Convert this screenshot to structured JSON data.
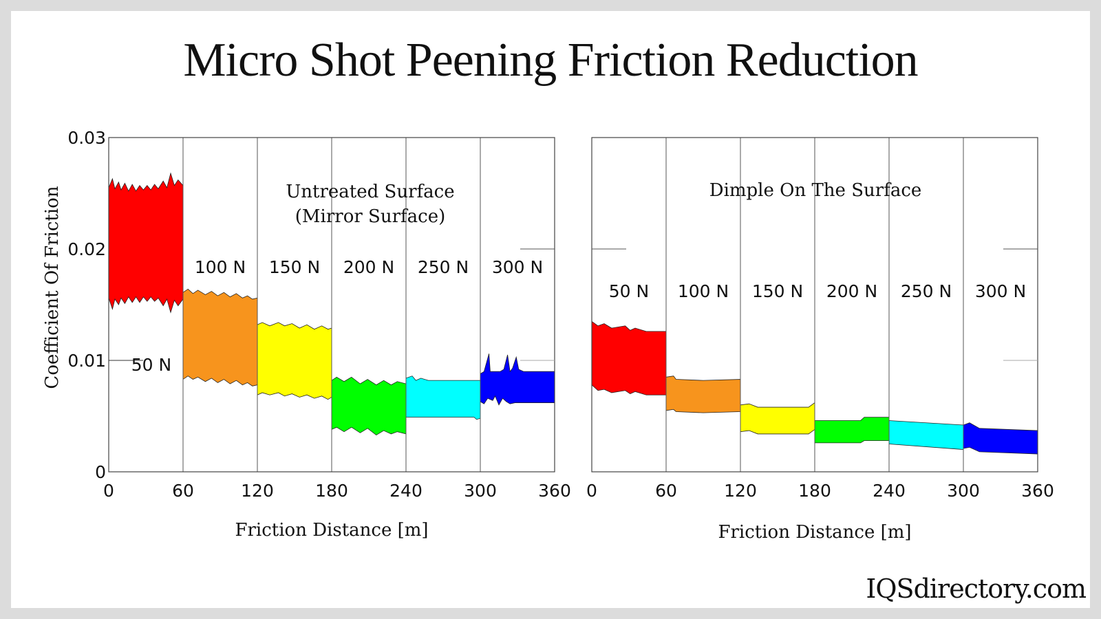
{
  "title": "Micro Shot Peening Friction Reduction",
  "watermark": "IQSdirectory.com",
  "chart_data": [
    {
      "type": "area",
      "title": "Untreated Surface (Mirror Surface)",
      "title_lines": [
        "Untreated Surface",
        "(Mirror Surface)"
      ],
      "xlabel": "Friction Distance [m]",
      "ylabel": "Coefficient Of Friction",
      "xlim": [
        0,
        360
      ],
      "ylim": [
        0,
        0.03
      ],
      "xticks": [
        "0",
        "60",
        "120",
        "180",
        "240",
        "300",
        "360"
      ],
      "yticks": [
        "0",
        "0.01",
        "0.02",
        "0.03"
      ],
      "grid": "vertical lines at 60 m intervals",
      "bands": [
        {
          "load": "50 N",
          "color": "#ff0000",
          "top": [
            [
              0,
              0.0255
            ],
            [
              3,
              0.0263
            ],
            [
              5,
              0.0254
            ],
            [
              8,
              0.026
            ],
            [
              10,
              0.0253
            ],
            [
              13,
              0.0259
            ],
            [
              16,
              0.0252
            ],
            [
              19,
              0.0258
            ],
            [
              22,
              0.0252
            ],
            [
              25,
              0.0257
            ],
            [
              28,
              0.0253
            ],
            [
              31,
              0.0257
            ],
            [
              34,
              0.0253
            ],
            [
              37,
              0.0258
            ],
            [
              40,
              0.0254
            ],
            [
              44,
              0.0261
            ],
            [
              47,
              0.0255
            ],
            [
              50,
              0.0268
            ],
            [
              53,
              0.0257
            ],
            [
              56,
              0.0262
            ],
            [
              60,
              0.0257
            ]
          ],
          "bottom": [
            [
              0,
              0.0156
            ],
            [
              3,
              0.0146
            ],
            [
              5,
              0.0155
            ],
            [
              8,
              0.015
            ],
            [
              10,
              0.0156
            ],
            [
              13,
              0.0151
            ],
            [
              16,
              0.0157
            ],
            [
              19,
              0.0152
            ],
            [
              22,
              0.0157
            ],
            [
              25,
              0.0152
            ],
            [
              28,
              0.0157
            ],
            [
              31,
              0.0153
            ],
            [
              34,
              0.0157
            ],
            [
              37,
              0.0153
            ],
            [
              40,
              0.0156
            ],
            [
              44,
              0.0149
            ],
            [
              47,
              0.0155
            ],
            [
              50,
              0.0143
            ],
            [
              53,
              0.0154
            ],
            [
              56,
              0.0149
            ],
            [
              60,
              0.0155
            ]
          ]
        },
        {
          "load": "100 N",
          "color": "#f7941d",
          "top": [
            [
              60,
              0.0161
            ],
            [
              64,
              0.0164
            ],
            [
              68,
              0.016
            ],
            [
              72,
              0.0163
            ],
            [
              78,
              0.0159
            ],
            [
              83,
              0.0162
            ],
            [
              88,
              0.0158
            ],
            [
              93,
              0.0161
            ],
            [
              98,
              0.0157
            ],
            [
              103,
              0.016
            ],
            [
              108,
              0.0156
            ],
            [
              112,
              0.0158
            ],
            [
              116,
              0.0155
            ],
            [
              120,
              0.0156
            ]
          ],
          "bottom": [
            [
              60,
              0.0083
            ],
            [
              64,
              0.0086
            ],
            [
              68,
              0.0083
            ],
            [
              72,
              0.0085
            ],
            [
              78,
              0.0081
            ],
            [
              83,
              0.0084
            ],
            [
              88,
              0.008
            ],
            [
              93,
              0.0083
            ],
            [
              98,
              0.0079
            ],
            [
              103,
              0.0082
            ],
            [
              108,
              0.0078
            ],
            [
              112,
              0.008
            ],
            [
              116,
              0.0077
            ],
            [
              120,
              0.0078
            ]
          ]
        },
        {
          "load": "150 N",
          "color": "#ffff00",
          "top": [
            [
              120,
              0.0132
            ],
            [
              124,
              0.0134
            ],
            [
              130,
              0.0131
            ],
            [
              137,
              0.0134
            ],
            [
              142,
              0.0131
            ],
            [
              148,
              0.0133
            ],
            [
              154,
              0.0129
            ],
            [
              160,
              0.0132
            ],
            [
              166,
              0.0128
            ],
            [
              172,
              0.0131
            ],
            [
              177,
              0.0128
            ],
            [
              180,
              0.0129
            ]
          ],
          "bottom": [
            [
              120,
              0.0069
            ],
            [
              124,
              0.0071
            ],
            [
              130,
              0.0069
            ],
            [
              137,
              0.0071
            ],
            [
              142,
              0.0068
            ],
            [
              148,
              0.007
            ],
            [
              154,
              0.0067
            ],
            [
              160,
              0.0069
            ],
            [
              166,
              0.0066
            ],
            [
              172,
              0.0068
            ],
            [
              177,
              0.0065
            ],
            [
              180,
              0.0067
            ]
          ],
          "extra": null
        },
        {
          "load": "200 N",
          "color": "#00ff00",
          "top": [
            [
              180,
              0.0082
            ],
            [
              184,
              0.0085
            ],
            [
              190,
              0.0081
            ],
            [
              196,
              0.0085
            ],
            [
              203,
              0.0079
            ],
            [
              209,
              0.0083
            ],
            [
              216,
              0.0078
            ],
            [
              222,
              0.0082
            ],
            [
              228,
              0.0078
            ],
            [
              233,
              0.0081
            ],
            [
              240,
              0.0079
            ]
          ],
          "bottom": [
            [
              180,
              0.0038
            ],
            [
              184,
              0.004
            ],
            [
              190,
              0.0036
            ],
            [
              196,
              0.004
            ],
            [
              203,
              0.0035
            ],
            [
              209,
              0.0039
            ],
            [
              216,
              0.0033
            ],
            [
              222,
              0.0037
            ],
            [
              228,
              0.0034
            ],
            [
              233,
              0.0036
            ],
            [
              240,
              0.0034
            ]
          ]
        },
        {
          "load": "250 N",
          "color": "#00ffff",
          "top": [
            [
              240,
              0.0084
            ],
            [
              245,
              0.0086
            ],
            [
              248,
              0.0082
            ],
            [
              252,
              0.0084
            ],
            [
              258,
              0.0082
            ],
            [
              300,
              0.0082
            ]
          ],
          "bottom": [
            [
              240,
              0.0049
            ],
            [
              295,
              0.0049
            ],
            [
              297,
              0.0047
            ],
            [
              300,
              0.0048
            ]
          ]
        },
        {
          "load": "300 N",
          "color": "#0000ff",
          "top": [
            [
              300,
              0.0088
            ],
            [
              303,
              0.009
            ],
            [
              307,
              0.0106
            ],
            [
              308,
              0.009
            ],
            [
              316,
              0.009
            ],
            [
              319,
              0.0092
            ],
            [
              322,
              0.0105
            ],
            [
              324,
              0.009
            ],
            [
              326,
              0.0093
            ],
            [
              329,
              0.0103
            ],
            [
              331,
              0.0092
            ],
            [
              335,
              0.009
            ],
            [
              360,
              0.009
            ]
          ],
          "bottom": [
            [
              300,
              0.0063
            ],
            [
              303,
              0.0061
            ],
            [
              306,
              0.0066
            ],
            [
              310,
              0.0064
            ],
            [
              312,
              0.0068
            ],
            [
              315,
              0.006
            ],
            [
              318,
              0.0066
            ],
            [
              321,
              0.0063
            ],
            [
              324,
              0.0061
            ],
            [
              328,
              0.0062
            ],
            [
              360,
              0.0062
            ]
          ]
        }
      ]
    },
    {
      "type": "area",
      "title": "Dimple On The Surface",
      "xlabel": "Friction Distance [m]",
      "xlim": [
        0,
        360
      ],
      "ylim": [
        0,
        0.03
      ],
      "xticks": [
        "0",
        "60",
        "120",
        "180",
        "240",
        "300",
        "360"
      ],
      "grid": "vertical lines at 60 m intervals",
      "bands": [
        {
          "load": "50 N",
          "color": "#ff0000",
          "top": [
            [
              0,
              0.0135
            ],
            [
              5,
              0.0131
            ],
            [
              10,
              0.0133
            ],
            [
              16,
              0.0129
            ],
            [
              27,
              0.0131
            ],
            [
              31,
              0.0127
            ],
            [
              35,
              0.0129
            ],
            [
              44,
              0.0126
            ],
            [
              60,
              0.0126
            ]
          ],
          "bottom": [
            [
              0,
              0.0078
            ],
            [
              5,
              0.0073
            ],
            [
              10,
              0.0074
            ],
            [
              16,
              0.0071
            ],
            [
              27,
              0.0073
            ],
            [
              31,
              0.007
            ],
            [
              35,
              0.0072
            ],
            [
              44,
              0.0069
            ],
            [
              60,
              0.0069
            ]
          ]
        },
        {
          "load": "100 N",
          "color": "#f7941d",
          "top": [
            [
              60,
              0.0085
            ],
            [
              66,
              0.0086
            ],
            [
              68,
              0.0083
            ],
            [
              90,
              0.0082
            ],
            [
              120,
              0.0083
            ]
          ],
          "bottom": [
            [
              60,
              0.0055
            ],
            [
              66,
              0.0056
            ],
            [
              68,
              0.0054
            ],
            [
              90,
              0.0053
            ],
            [
              120,
              0.0054
            ]
          ]
        },
        {
          "load": "150 N",
          "color": "#ffff00",
          "top": [
            [
              120,
              0.006
            ],
            [
              127,
              0.0061
            ],
            [
              134,
              0.0058
            ],
            [
              160,
              0.0058
            ],
            [
              175,
              0.0058
            ],
            [
              180,
              0.0062
            ]
          ],
          "bottom": [
            [
              120,
              0.0036
            ],
            [
              127,
              0.0037
            ],
            [
              134,
              0.0034
            ],
            [
              160,
              0.0034
            ],
            [
              175,
              0.0034
            ],
            [
              180,
              0.0038
            ]
          ]
        },
        {
          "load": "200 N",
          "color": "#00ff00",
          "top": [
            [
              180,
              0.0046
            ],
            [
              217,
              0.0046
            ],
            [
              220,
              0.0049
            ],
            [
              240,
              0.0049
            ]
          ],
          "bottom": [
            [
              180,
              0.0026
            ],
            [
              217,
              0.0026
            ],
            [
              220,
              0.0028
            ],
            [
              240,
              0.0028
            ]
          ]
        },
        {
          "load": "250 N",
          "color": "#00ffff",
          "top": [
            [
              240,
              0.0046
            ],
            [
              300,
              0.0042
            ]
          ],
          "bottom": [
            [
              240,
              0.0025
            ],
            [
              300,
              0.002
            ]
          ]
        },
        {
          "load": "300 N",
          "color": "#0000ff",
          "top": [
            [
              300,
              0.0042
            ],
            [
              305,
              0.0044
            ],
            [
              313,
              0.0039
            ],
            [
              360,
              0.0037
            ]
          ],
          "bottom": [
            [
              300,
              0.0021
            ],
            [
              305,
              0.0022
            ],
            [
              313,
              0.0018
            ],
            [
              360,
              0.0016
            ]
          ]
        }
      ]
    }
  ]
}
